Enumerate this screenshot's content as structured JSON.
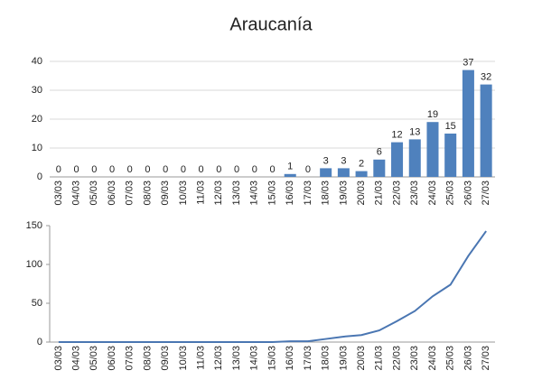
{
  "chart_data": [
    {
      "type": "bar",
      "title": "Araucanía",
      "categories": [
        "03/03",
        "04/03",
        "05/03",
        "06/03",
        "07/03",
        "08/03",
        "09/03",
        "10/03",
        "11/03",
        "12/03",
        "13/03",
        "14/03",
        "15/03",
        "16/03",
        "17/03",
        "18/03",
        "19/03",
        "20/03",
        "21/03",
        "22/03",
        "23/03",
        "24/03",
        "25/03",
        "26/03",
        "27/03"
      ],
      "values": [
        0,
        0,
        0,
        0,
        0,
        0,
        0,
        0,
        0,
        0,
        0,
        0,
        0,
        1,
        0,
        3,
        3,
        2,
        6,
        12,
        13,
        19,
        15,
        37,
        32
      ],
      "color": "#4f81bd",
      "ylim": [
        0,
        40
      ],
      "yticks": [
        0,
        10,
        20,
        30,
        40
      ],
      "grid": true,
      "data_labels": true
    },
    {
      "type": "line",
      "categories": [
        "03/03",
        "04/03",
        "05/03",
        "06/03",
        "07/03",
        "08/03",
        "09/03",
        "10/03",
        "11/03",
        "12/03",
        "13/03",
        "14/03",
        "15/03",
        "16/03",
        "17/03",
        "18/03",
        "19/03",
        "20/03",
        "21/03",
        "22/03",
        "23/03",
        "24/03",
        "25/03",
        "26/03",
        "27/03"
      ],
      "values": [
        0,
        0,
        0,
        0,
        0,
        0,
        0,
        0,
        0,
        0,
        0,
        0,
        0,
        1,
        1,
        4,
        7,
        9,
        15,
        27,
        40,
        59,
        74,
        111,
        143
      ],
      "color": "#4a76b2",
      "ylim": [
        0,
        150
      ],
      "yticks": [
        0,
        50,
        100,
        150
      ],
      "grid": false,
      "data_labels": false
    }
  ]
}
